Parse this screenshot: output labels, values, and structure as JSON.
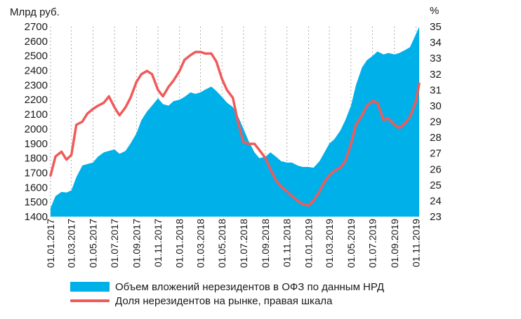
{
  "chart_data": {
    "type": "area+line",
    "title": "",
    "left_axis": {
      "unit_label": "Млрд руб.",
      "min": 1400,
      "max": 2700,
      "ticks": [
        1400,
        1500,
        1600,
        1700,
        1800,
        1900,
        2000,
        2100,
        2200,
        2300,
        2400,
        2500,
        2600,
        2700
      ]
    },
    "right_axis": {
      "unit_label": "%",
      "min": 23,
      "max": 35,
      "ticks": [
        23,
        24,
        25,
        26,
        27,
        28,
        29,
        30,
        31,
        32,
        33,
        34,
        35
      ]
    },
    "x_ticks": [
      "01.01.2017",
      "01.03.2017",
      "01.05.2017",
      "01.07.2017",
      "01.09.2017",
      "01.11.2017",
      "01.01.2018",
      "01.03.2018",
      "01.05.2018",
      "01.07.2018",
      "01.09.2018",
      "01.11.2018",
      "01.01.2019",
      "01.03.2019",
      "01.05.2019",
      "01.07.2019",
      "01.09.2019",
      "01.11.2019"
    ],
    "x_range": [
      "2017-01-01",
      "2019-11-10"
    ],
    "grid": "vertical dashed",
    "legend_position": "bottom",
    "colors": {
      "area": "#00b1e9",
      "line": "#f05a5a"
    },
    "series": [
      {
        "name": "Объем вложений нерезидентов в ОФЗ по данным НРД",
        "kind": "area",
        "axis": "left",
        "x": [
          "2017-01-01",
          "2017-01-15",
          "2017-02-01",
          "2017-02-15",
          "2017-03-01",
          "2017-03-15",
          "2017-04-01",
          "2017-04-15",
          "2017-05-01",
          "2017-05-15",
          "2017-06-01",
          "2017-06-15",
          "2017-07-01",
          "2017-07-15",
          "2017-08-01",
          "2017-08-15",
          "2017-09-01",
          "2017-09-15",
          "2017-10-01",
          "2017-10-15",
          "2017-11-01",
          "2017-11-15",
          "2017-12-01",
          "2017-12-15",
          "2018-01-01",
          "2018-01-15",
          "2018-02-01",
          "2018-02-15",
          "2018-03-01",
          "2018-03-15",
          "2018-04-01",
          "2018-04-15",
          "2018-05-01",
          "2018-05-15",
          "2018-06-01",
          "2018-06-15",
          "2018-07-01",
          "2018-07-15",
          "2018-08-01",
          "2018-08-15",
          "2018-09-01",
          "2018-09-15",
          "2018-10-01",
          "2018-10-15",
          "2018-11-01",
          "2018-11-15",
          "2018-12-01",
          "2018-12-15",
          "2019-01-01",
          "2019-01-15",
          "2019-02-01",
          "2019-02-15",
          "2019-03-01",
          "2019-03-15",
          "2019-04-01",
          "2019-04-15",
          "2019-05-01",
          "2019-05-15",
          "2019-06-01",
          "2019-06-15",
          "2019-07-01",
          "2019-07-15",
          "2019-08-01",
          "2019-08-15",
          "2019-09-01",
          "2019-09-15",
          "2019-10-01",
          "2019-10-15",
          "2019-11-01",
          "2019-11-10"
        ],
        "values": [
          1460,
          1540,
          1570,
          1565,
          1580,
          1670,
          1750,
          1760,
          1770,
          1810,
          1840,
          1850,
          1860,
          1830,
          1850,
          1900,
          1970,
          2060,
          2120,
          2160,
          2210,
          2170,
          2160,
          2190,
          2200,
          2220,
          2250,
          2240,
          2250,
          2270,
          2290,
          2260,
          2220,
          2180,
          2150,
          2090,
          2000,
          1920,
          1840,
          1800,
          1810,
          1840,
          1810,
          1780,
          1770,
          1770,
          1750,
          1740,
          1740,
          1735,
          1780,
          1840,
          1900,
          1930,
          1990,
          2060,
          2160,
          2300,
          2420,
          2470,
          2500,
          2530,
          2510,
          2520,
          2510,
          2520,
          2540,
          2560,
          2650,
          2700
        ]
      },
      {
        "name": "Доля нерезидентов на рынке, правая шкала",
        "kind": "line",
        "axis": "right",
        "x": [
          "2017-01-01",
          "2017-01-15",
          "2017-02-01",
          "2017-02-15",
          "2017-03-01",
          "2017-03-15",
          "2017-04-01",
          "2017-04-15",
          "2017-05-01",
          "2017-05-15",
          "2017-06-01",
          "2017-06-15",
          "2017-07-01",
          "2017-07-15",
          "2017-08-01",
          "2017-08-15",
          "2017-09-01",
          "2017-09-15",
          "2017-10-01",
          "2017-10-15",
          "2017-11-01",
          "2017-11-15",
          "2017-12-01",
          "2017-12-15",
          "2018-01-01",
          "2018-01-15",
          "2018-02-01",
          "2018-02-15",
          "2018-03-01",
          "2018-03-15",
          "2018-04-01",
          "2018-04-15",
          "2018-05-01",
          "2018-05-15",
          "2018-06-01",
          "2018-06-15",
          "2018-07-01",
          "2018-07-15",
          "2018-08-01",
          "2018-08-15",
          "2018-09-01",
          "2018-09-15",
          "2018-10-01",
          "2018-10-15",
          "2018-11-01",
          "2018-11-15",
          "2018-12-01",
          "2018-12-15",
          "2019-01-01",
          "2019-01-15",
          "2019-02-01",
          "2019-02-15",
          "2019-03-01",
          "2019-03-15",
          "2019-04-01",
          "2019-04-15",
          "2019-05-01",
          "2019-05-15",
          "2019-06-01",
          "2019-06-15",
          "2019-07-01",
          "2019-07-15",
          "2019-08-01",
          "2019-08-15",
          "2019-09-01",
          "2019-09-15",
          "2019-10-01",
          "2019-10-15",
          "2019-11-01",
          "2019-11-10"
        ],
        "values": [
          25.6,
          26.8,
          27.1,
          26.6,
          26.9,
          28.8,
          29.0,
          29.5,
          29.8,
          30.0,
          30.2,
          30.6,
          29.9,
          29.4,
          29.9,
          30.5,
          31.5,
          32.0,
          32.2,
          32.0,
          31.0,
          30.6,
          31.2,
          31.6,
          32.2,
          32.9,
          33.2,
          33.4,
          33.4,
          33.3,
          33.3,
          32.8,
          31.7,
          31.0,
          30.5,
          29.0,
          27.7,
          27.6,
          27.6,
          27.2,
          26.7,
          26.0,
          25.3,
          24.9,
          24.6,
          24.3,
          24.0,
          23.8,
          23.7,
          24.0,
          24.6,
          25.2,
          25.6,
          25.9,
          26.1,
          26.5,
          27.6,
          28.8,
          29.4,
          30.0,
          30.3,
          30.2,
          29.1,
          29.2,
          28.8,
          28.6,
          28.9,
          29.3,
          30.3,
          31.4
        ]
      }
    ]
  }
}
